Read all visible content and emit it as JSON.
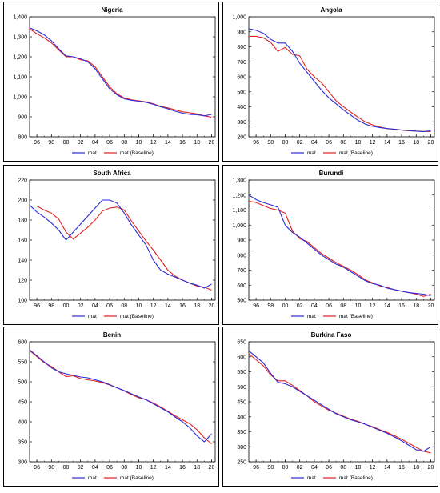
{
  "colors": {
    "mat": "#2b2bd6",
    "baseline": "#e02020"
  },
  "legend": {
    "mat": "mat",
    "baseline": "mat (Baseline)"
  },
  "chart_data": [
    {
      "type": "line",
      "title": "Nigeria",
      "xlim": [
        1995,
        2020
      ],
      "x_ticks": [
        "96",
        "98",
        "00",
        "02",
        "04",
        "06",
        "08",
        "10",
        "12",
        "14",
        "16",
        "18",
        "20"
      ],
      "ylim": [
        800,
        1400
      ],
      "y_ticks": [
        "800",
        "900",
        "1,000",
        "1,100",
        "1,200",
        "1,300",
        "1,400"
      ],
      "x": [
        1995,
        1996,
        1997,
        1998,
        1999,
        2000,
        2001,
        2002,
        2003,
        2004,
        2005,
        2006,
        2007,
        2008,
        2009,
        2010,
        2011,
        2012,
        2013,
        2014,
        2015,
        2016,
        2017,
        2018,
        2019,
        2020
      ],
      "series": [
        {
          "name": "mat",
          "values": [
            1345,
            1330,
            1310,
            1280,
            1240,
            1205,
            1200,
            1190,
            1175,
            1140,
            1090,
            1040,
            1010,
            990,
            983,
            978,
            972,
            963,
            950,
            940,
            928,
            918,
            912,
            910,
            905,
            912
          ]
        },
        {
          "name": "mat (Baseline)",
          "values": [
            1340,
            1315,
            1295,
            1270,
            1235,
            1200,
            1200,
            1185,
            1180,
            1150,
            1100,
            1050,
            1015,
            995,
            985,
            980,
            975,
            965,
            952,
            945,
            935,
            925,
            920,
            915,
            905,
            898
          ]
        }
      ]
    },
    {
      "type": "line",
      "title": "Angola",
      "xlim": [
        1995,
        2020
      ],
      "x_ticks": [
        "96",
        "98",
        "00",
        "02",
        "04",
        "06",
        "08",
        "10",
        "12",
        "14",
        "16",
        "18",
        "20"
      ],
      "ylim": [
        200,
        1000
      ],
      "y_ticks": [
        "200",
        "300",
        "400",
        "500",
        "600",
        "700",
        "800",
        "900",
        "1,000"
      ],
      "x": [
        1995,
        1996,
        1997,
        1998,
        1999,
        2000,
        2001,
        2002,
        2003,
        2004,
        2005,
        2006,
        2007,
        2008,
        2009,
        2010,
        2011,
        2012,
        2013,
        2014,
        2015,
        2016,
        2017,
        2018,
        2019,
        2020
      ],
      "series": [
        {
          "name": "mat",
          "values": [
            920,
            910,
            890,
            850,
            825,
            825,
            770,
            690,
            630,
            570,
            510,
            460,
            420,
            380,
            345,
            310,
            285,
            270,
            262,
            255,
            250,
            245,
            242,
            238,
            235,
            240
          ]
        },
        {
          "name": "mat (Baseline)",
          "values": [
            870,
            870,
            860,
            830,
            770,
            795,
            750,
            740,
            650,
            600,
            560,
            500,
            440,
            400,
            365,
            330,
            300,
            280,
            265,
            255,
            250,
            245,
            240,
            238,
            236,
            235
          ]
        }
      ]
    },
    {
      "type": "line",
      "title": "South Africa",
      "xlim": [
        1995,
        2020
      ],
      "x_ticks": [
        "96",
        "98",
        "00",
        "02",
        "04",
        "06",
        "08",
        "10",
        "12",
        "14",
        "16",
        "18",
        "20"
      ],
      "ylim": [
        100,
        220
      ],
      "y_ticks": [
        "100",
        "120",
        "140",
        "160",
        "180",
        "200",
        "220"
      ],
      "x": [
        1995,
        1996,
        1997,
        1998,
        1999,
        2000,
        2001,
        2002,
        2003,
        2004,
        2005,
        2006,
        2007,
        2008,
        2009,
        2010,
        2011,
        2012,
        2013,
        2014,
        2015,
        2016,
        2017,
        2018,
        2019,
        2020
      ],
      "series": [
        {
          "name": "mat",
          "values": [
            195,
            188,
            183,
            177,
            170,
            160,
            168,
            176,
            184,
            192,
            200,
            200,
            197,
            187,
            175,
            165,
            155,
            140,
            130,
            126,
            123,
            120,
            117,
            115,
            112,
            116
          ]
        },
        {
          "name": "mat (Baseline)",
          "values": [
            194,
            194,
            190,
            187,
            181,
            168,
            161,
            167,
            173,
            180,
            189,
            192,
            193,
            190,
            179,
            169,
            159,
            150,
            140,
            130,
            124,
            120,
            117,
            114,
            113,
            110
          ]
        }
      ]
    },
    {
      "type": "line",
      "title": "Burundi",
      "xlim": [
        1995,
        2020
      ],
      "x_ticks": [
        "96",
        "98",
        "00",
        "02",
        "04",
        "06",
        "08",
        "10",
        "12",
        "14",
        "16",
        "18",
        "20"
      ],
      "ylim": [
        500,
        1300
      ],
      "y_ticks": [
        "500",
        "600",
        "700",
        "800",
        "900",
        "1,000",
        "1,100",
        "1,200",
        "1,300"
      ],
      "x": [
        1995,
        1996,
        1997,
        1998,
        1999,
        2000,
        2001,
        2002,
        2003,
        2004,
        2005,
        2006,
        2007,
        2008,
        2009,
        2010,
        2011,
        2012,
        2013,
        2014,
        2015,
        2016,
        2017,
        2018,
        2019,
        2020
      ],
      "series": [
        {
          "name": "mat",
          "values": [
            1200,
            1170,
            1150,
            1135,
            1120,
            1000,
            950,
            920,
            880,
            840,
            800,
            770,
            740,
            720,
            690,
            660,
            630,
            610,
            600,
            580,
            570,
            560,
            550,
            545,
            540,
            530
          ]
        },
        {
          "name": "mat (Baseline)",
          "values": [
            1160,
            1150,
            1130,
            1110,
            1100,
            1080,
            960,
            910,
            890,
            850,
            810,
            780,
            750,
            725,
            700,
            670,
            635,
            615,
            595,
            585,
            570,
            560,
            550,
            540,
            525,
            540
          ]
        }
      ]
    },
    {
      "type": "line",
      "title": "Benin",
      "xlim": [
        1995,
        2020
      ],
      "x_ticks": [
        "96",
        "98",
        "00",
        "02",
        "04",
        "06",
        "08",
        "10",
        "12",
        "14",
        "16",
        "18",
        "20"
      ],
      "ylim": [
        300,
        600
      ],
      "y_ticks": [
        "300",
        "350",
        "400",
        "450",
        "500",
        "550",
        "600"
      ],
      "x": [
        1995,
        1996,
        1997,
        1998,
        1999,
        2000,
        2001,
        2002,
        2003,
        2004,
        2005,
        2006,
        2007,
        2008,
        2009,
        2010,
        2011,
        2012,
        2013,
        2014,
        2015,
        2016,
        2017,
        2018,
        2019,
        2020
      ],
      "series": [
        {
          "name": "mat",
          "values": [
            580,
            565,
            550,
            535,
            525,
            520,
            516,
            512,
            510,
            505,
            500,
            493,
            485,
            478,
            470,
            462,
            455,
            445,
            435,
            425,
            412,
            400,
            385,
            365,
            350,
            370
          ]
        },
        {
          "name": "mat (Baseline)",
          "values": [
            578,
            563,
            548,
            538,
            525,
            513,
            515,
            508,
            505,
            502,
            498,
            492,
            485,
            477,
            468,
            460,
            455,
            447,
            437,
            426,
            415,
            405,
            395,
            380,
            360,
            345
          ]
        }
      ]
    },
    {
      "type": "line",
      "title": "Burkina Faso",
      "xlim": [
        1995,
        2020
      ],
      "x_ticks": [
        "96",
        "98",
        "00",
        "02",
        "04",
        "06",
        "08",
        "10",
        "12",
        "14",
        "16",
        "18",
        "20"
      ],
      "ylim": [
        250,
        650
      ],
      "y_ticks": [
        "250",
        "300",
        "350",
        "400",
        "450",
        "500",
        "550",
        "600",
        "650"
      ],
      "x": [
        1995,
        1996,
        1997,
        1998,
        1999,
        2000,
        2001,
        2002,
        2003,
        2004,
        2005,
        2006,
        2007,
        2008,
        2009,
        2010,
        2011,
        2012,
        2013,
        2014,
        2015,
        2016,
        2017,
        2018,
        2019,
        2020
      ],
      "series": [
        {
          "name": "mat",
          "values": [
            620,
            600,
            580,
            545,
            515,
            510,
            500,
            485,
            470,
            455,
            440,
            425,
            410,
            400,
            390,
            383,
            375,
            365,
            355,
            345,
            333,
            320,
            305,
            290,
            285,
            300
          ]
        },
        {
          "name": "mat (Baseline)",
          "values": [
            610,
            590,
            570,
            540,
            520,
            520,
            505,
            488,
            470,
            450,
            436,
            422,
            412,
            402,
            392,
            385,
            375,
            367,
            357,
            348,
            337,
            325,
            312,
            298,
            285,
            280
          ]
        }
      ]
    }
  ]
}
